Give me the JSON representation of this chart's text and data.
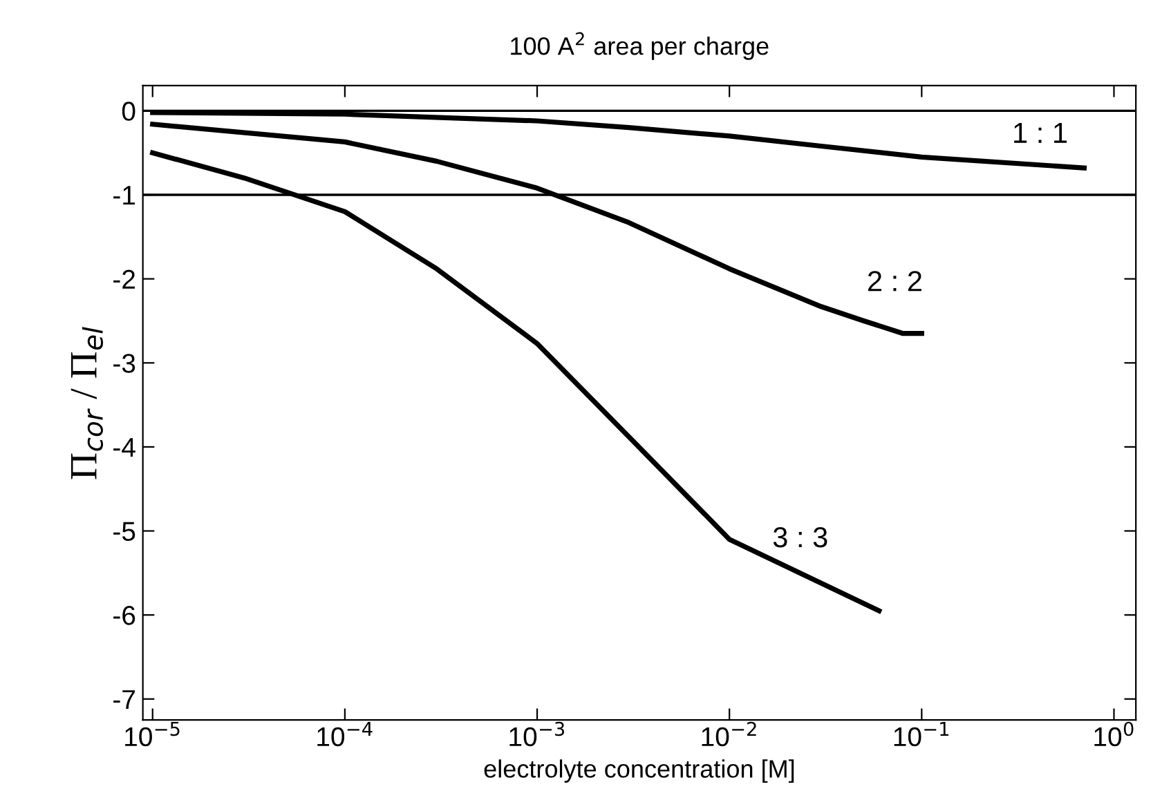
{
  "chart_data": {
    "type": "line",
    "title": "100 A$^{2}$ area per charge",
    "xlabel": "electrolyte concentration [M]",
    "ylabel": "Π$_{cor}$ / Π$_{el}$",
    "log": "x",
    "grid": false,
    "legend": false,
    "marker": "none",
    "line_style": "solid",
    "xlim": [
      8.9e-06,
      1.3
    ],
    "ylim": [
      -7.25,
      0.3
    ],
    "xticks": [
      {
        "value": 1e-05,
        "label": "10$^{−5}$"
      },
      {
        "value": 0.0001,
        "label": "10$^{−4}$"
      },
      {
        "value": 0.001,
        "label": "10$^{−3}$"
      },
      {
        "value": 0.01,
        "label": "10$^{−2}$"
      },
      {
        "value": 0.1,
        "label": "10$^{−1}$"
      },
      {
        "value": 1,
        "label": "10$^{0}$"
      }
    ],
    "yticks": [
      0,
      -1,
      -2,
      -3,
      -4,
      -5,
      -6,
      -7
    ],
    "ref_lines": [
      {
        "axis": "y",
        "value": 0,
        "color": "#000000"
      },
      {
        "axis": "y",
        "value": -1,
        "color": "#000000"
      }
    ],
    "series": [
      {
        "name": "1 : 1",
        "color": "#000000",
        "x": [
          1e-05,
          0.0001,
          0.001,
          0.003,
          0.01,
          0.03,
          0.1,
          0.7
        ],
        "values": [
          -0.02,
          -0.04,
          -0.12,
          -0.2,
          -0.3,
          -0.42,
          -0.55,
          -0.68
        ]
      },
      {
        "name": "2 : 2",
        "color": "#000000",
        "x": [
          1e-05,
          0.0001,
          0.0003,
          0.001,
          0.003,
          0.01,
          0.03,
          0.05,
          0.08,
          0.1
        ],
        "values": [
          -0.16,
          -0.37,
          -0.6,
          -0.92,
          -1.33,
          -1.88,
          -2.33,
          -2.5,
          -2.65,
          -2.65
        ]
      },
      {
        "name": "3 : 3",
        "color": "#000000",
        "x": [
          1e-05,
          3e-05,
          0.0001,
          0.0003,
          0.001,
          0.003,
          0.01,
          0.06
        ],
        "values": [
          -0.5,
          -0.8,
          -1.2,
          -1.88,
          -2.77,
          -3.88,
          -5.1,
          -5.95
        ]
      }
    ]
  }
}
